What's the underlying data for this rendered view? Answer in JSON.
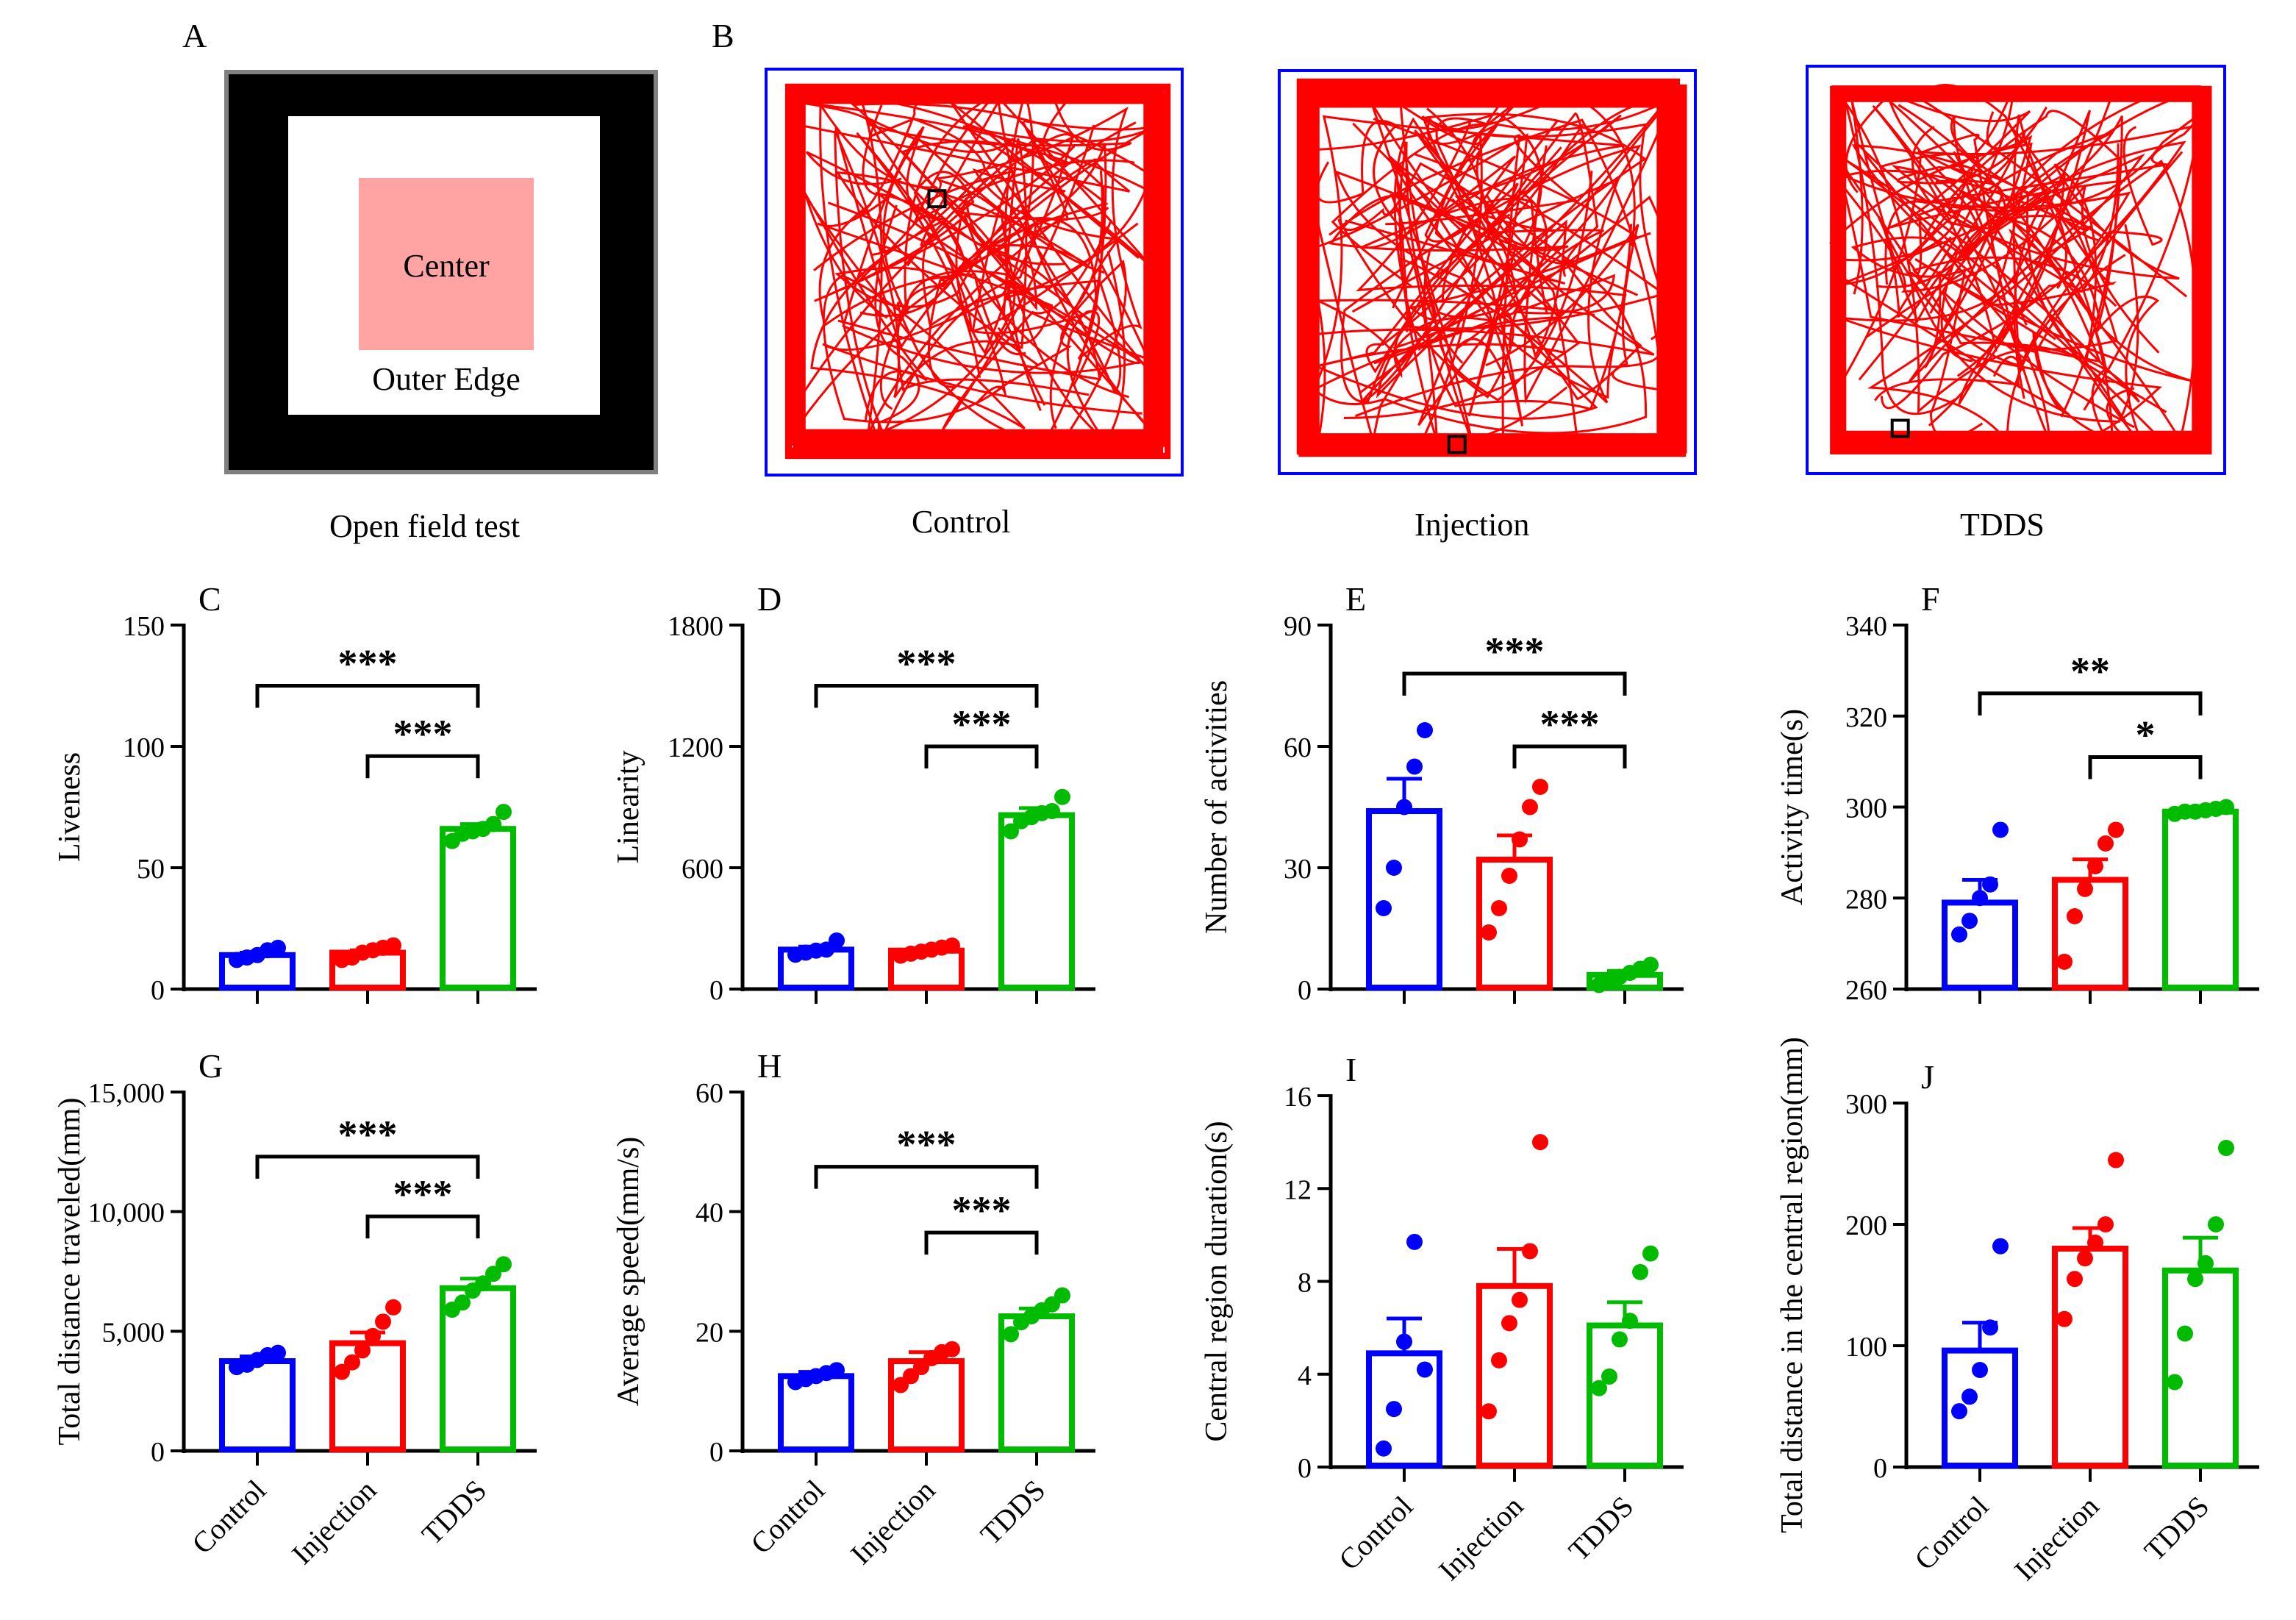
{
  "colors": {
    "control": "#0000ff",
    "injection": "#ff0000",
    "tdds": "#00bb00",
    "center_zone": "#ffa3a3",
    "arena_frame": "#000000",
    "trace": "#ff0000",
    "trace_box": "#0000ff"
  },
  "panel_a": {
    "letter": "A",
    "center_label": "Center",
    "edge_label": "Outer Edge",
    "caption": "Open field test"
  },
  "panel_b": {
    "letter": "B",
    "traces": [
      {
        "caption": "Control"
      },
      {
        "caption": "Injection"
      },
      {
        "caption": "TDDS"
      }
    ]
  },
  "chart_data": [
    {
      "id": "C",
      "type": "bar",
      "letter": "C",
      "ylabel": "Liveness",
      "ylim": [
        0,
        150
      ],
      "yticks": [
        "0",
        "50",
        "100",
        "150"
      ],
      "categories": [
        "Control",
        "Injection",
        "TDDS"
      ],
      "show_xlabels": false,
      "means": [
        14,
        15,
        66
      ],
      "sem": [
        1,
        1,
        2
      ],
      "points": [
        [
          12,
          13,
          14,
          16,
          17
        ],
        [
          12,
          13,
          15,
          16,
          17,
          18
        ],
        [
          61,
          64,
          65,
          66,
          68,
          73
        ]
      ],
      "sig": [
        {
          "from": 0,
          "to": 2,
          "label": "***",
          "y": 125
        },
        {
          "from": 1,
          "to": 2,
          "label": "***",
          "y": 96
        }
      ]
    },
    {
      "id": "D",
      "type": "bar",
      "letter": "D",
      "ylabel": "Linearity",
      "ylim": [
        0,
        1800
      ],
      "yticks": [
        "0",
        "600",
        "1200",
        "1800"
      ],
      "categories": [
        "Control",
        "Injection",
        "TDDS"
      ],
      "show_xlabels": false,
      "means": [
        195,
        190,
        860
      ],
      "sem": [
        15,
        12,
        35
      ],
      "points": [
        [
          170,
          180,
          190,
          195,
          240
        ],
        [
          165,
          175,
          185,
          195,
          205,
          215
        ],
        [
          780,
          830,
          850,
          870,
          880,
          950
        ]
      ],
      "sig": [
        {
          "from": 0,
          "to": 2,
          "label": "***",
          "y": 1500
        },
        {
          "from": 1,
          "to": 2,
          "label": "***",
          "y": 1200
        }
      ]
    },
    {
      "id": "E",
      "type": "bar",
      "letter": "E",
      "ylabel": "Number of activities",
      "ylim": [
        0,
        90
      ],
      "yticks": [
        "0",
        "30",
        "60",
        "90"
      ],
      "categories": [
        "Control",
        "Injection",
        "TDDS"
      ],
      "show_xlabels": false,
      "means": [
        44,
        32,
        3.5
      ],
      "sem": [
        8,
        6,
        1
      ],
      "points": [
        [
          20,
          30,
          45,
          55,
          64
        ],
        [
          14,
          20,
          28,
          37,
          45,
          50
        ],
        [
          1,
          2,
          3,
          4,
          5,
          6
        ]
      ],
      "sig": [
        {
          "from": 0,
          "to": 2,
          "label": "***",
          "y": 78
        },
        {
          "from": 1,
          "to": 2,
          "label": "***",
          "y": 60
        }
      ]
    },
    {
      "id": "F",
      "type": "bar",
      "letter": "F",
      "ylabel": "Activity time(s)",
      "ylim": [
        260,
        340
      ],
      "yticks": [
        "260",
        "280",
        "300",
        "320",
        "340"
      ],
      "categories": [
        "Control",
        "Injection",
        "TDDS"
      ],
      "show_xlabels": false,
      "means": [
        279,
        284,
        299
      ],
      "sem": [
        5,
        4.5,
        0.3
      ],
      "points": [
        [
          272,
          275,
          280,
          283,
          295
        ],
        [
          266,
          276,
          282,
          287,
          292,
          295
        ],
        [
          298.5,
          299,
          299,
          299.3,
          299.6,
          300
        ]
      ],
      "sig": [
        {
          "from": 0,
          "to": 2,
          "label": "**",
          "y": 325
        },
        {
          "from": 1,
          "to": 2,
          "label": "*",
          "y": 311
        }
      ]
    },
    {
      "id": "G",
      "type": "bar",
      "letter": "G",
      "ylabel": "Total distance traveled(mm)",
      "ylim": [
        0,
        15000
      ],
      "yticks": [
        "0",
        "5,000",
        "10,000",
        "15,000"
      ],
      "categories": [
        "Control",
        "Injection",
        "TDDS"
      ],
      "show_xlabels": true,
      "means": [
        3750,
        4500,
        6800
      ],
      "sem": [
        200,
        450,
        400
      ],
      "points": [
        [
          3500,
          3600,
          3800,
          4000,
          4100
        ],
        [
          3300,
          3700,
          4200,
          4800,
          5400,
          6000
        ],
        [
          5900,
          6200,
          6700,
          7000,
          7400,
          7800
        ]
      ],
      "sig": [
        {
          "from": 0,
          "to": 2,
          "label": "***",
          "y": 12300
        },
        {
          "from": 1,
          "to": 2,
          "label": "***",
          "y": 9800
        }
      ]
    },
    {
      "id": "H",
      "type": "bar",
      "letter": "H",
      "ylabel": "Average speed(mm/s)",
      "ylim": [
        0,
        60
      ],
      "yticks": [
        "0",
        "20",
        "40",
        "60"
      ],
      "categories": [
        "Control",
        "Injection",
        "TDDS"
      ],
      "show_xlabels": true,
      "means": [
        12.5,
        15,
        22.5
      ],
      "sem": [
        0.7,
        1.5,
        1.3
      ],
      "points": [
        [
          11.5,
          12,
          12.5,
          13,
          13.5
        ],
        [
          11,
          12.5,
          14,
          15.5,
          16.5,
          17
        ],
        [
          19.5,
          21.5,
          22.5,
          23.5,
          24.5,
          26
        ]
      ],
      "sig": [
        {
          "from": 0,
          "to": 2,
          "label": "***",
          "y": 47.5
        },
        {
          "from": 1,
          "to": 2,
          "label": "***",
          "y": 36.5
        }
      ]
    },
    {
      "id": "I",
      "type": "bar",
      "letter": "I",
      "ylabel": "Central region duration(s)",
      "ylim": [
        0,
        16
      ],
      "yticks": [
        "0",
        "4",
        "8",
        "12",
        "16"
      ],
      "categories": [
        "Control",
        "Injection",
        "TDDS"
      ],
      "show_xlabels": true,
      "means": [
        4.9,
        7.8,
        6.1
      ],
      "sem": [
        1.5,
        1.6,
        1.0
      ],
      "points": [
        [
          0.8,
          2.5,
          5.4,
          9.7,
          4.2
        ],
        [
          2.4,
          4.6,
          6.2,
          7.2,
          9.3,
          14.0
        ],
        [
          3.4,
          3.9,
          5.5,
          6.3,
          8.4,
          9.2
        ]
      ],
      "sig": []
    },
    {
      "id": "J",
      "type": "bar",
      "letter": "J",
      "ylabel": "Total distance in the central region(mm)",
      "ylim": [
        0,
        300
      ],
      "yticks": [
        "0",
        "100",
        "200",
        "300"
      ],
      "categories": [
        "Control",
        "Injection",
        "TDDS"
      ],
      "show_xlabels": true,
      "means": [
        96,
        180,
        162
      ],
      "sem": [
        23,
        17,
        27
      ],
      "points": [
        [
          46,
          58,
          80,
          115,
          182
        ],
        [
          122,
          155,
          172,
          185,
          200,
          253
        ],
        [
          70,
          110,
          155,
          168,
          200,
          263
        ]
      ],
      "sig": []
    }
  ]
}
